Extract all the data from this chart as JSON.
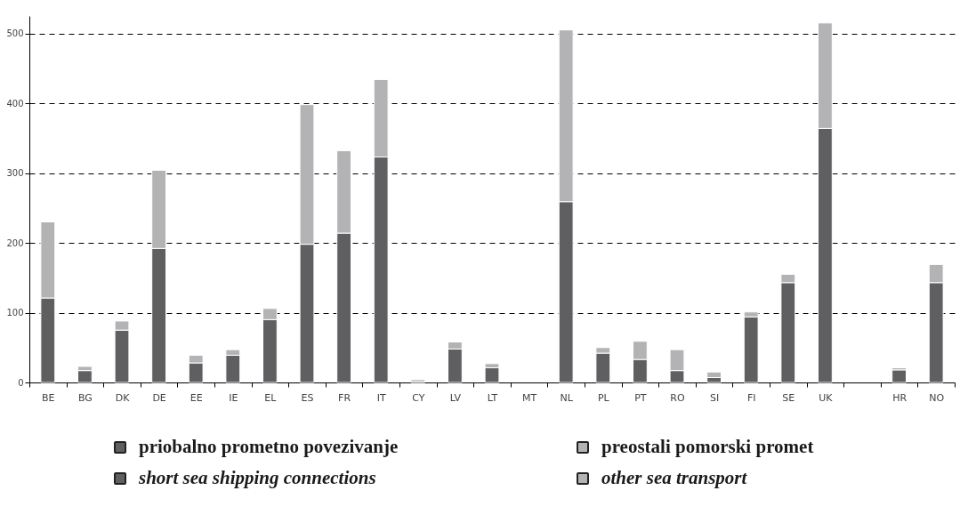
{
  "chart_data": {
    "type": "bar",
    "stacked": true,
    "categories": [
      "BE",
      "BG",
      "DK",
      "DE",
      "EE",
      "IE",
      "EL",
      "ES",
      "FR",
      "IT",
      "CY",
      "LV",
      "LT",
      "MT",
      "NL",
      "PL",
      "PT",
      "RO",
      "SI",
      "FI",
      "SE",
      "UK",
      null,
      "HR",
      "NO"
    ],
    "series": [
      {
        "name": "priobalno prometno povezivanje",
        "color": "#5f5f61",
        "values": [
          121,
          17,
          75,
          192,
          28,
          39,
          90,
          198,
          214,
          323,
          1,
          48,
          21,
          0,
          259,
          42,
          33,
          17,
          7,
          94,
          143,
          364,
          null,
          18,
          143
        ]
      },
      {
        "name": "preostali pomorski promet",
        "color": "#b3b3b5",
        "values": [
          109,
          6,
          13,
          112,
          11,
          8,
          16,
          200,
          118,
          111,
          3,
          10,
          6,
          0,
          246,
          8,
          26,
          30,
          8,
          7,
          12,
          151,
          null,
          3,
          26
        ]
      }
    ],
    "annotations": [
      "short sea shipping connections",
      "other sea transport"
    ],
    "ylim": [
      0,
      525
    ],
    "yticks": [
      0,
      100,
      200,
      300,
      400,
      500
    ],
    "grid": "y",
    "line_style": "dashed",
    "legend": "bottom"
  }
}
